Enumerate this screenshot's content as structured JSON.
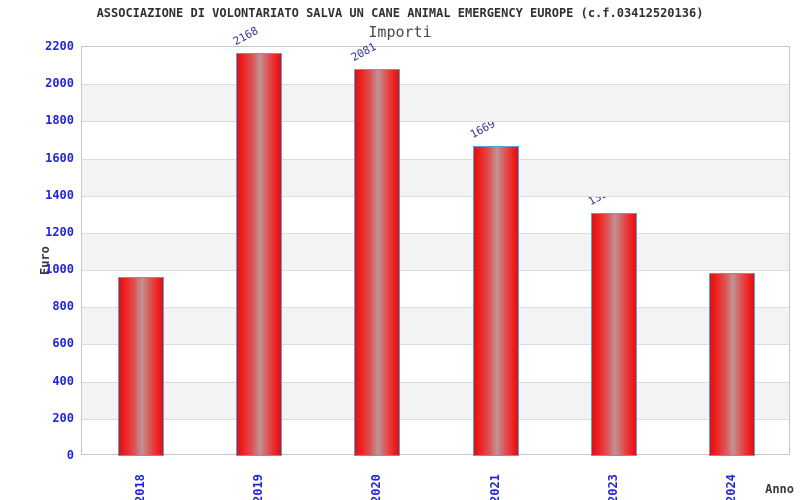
{
  "chart": {
    "title": "ASSOCIAZIONE DI VOLONTARIATO SALVA UN CANE ANIMAL EMERGENCY EUROPE (c.f.03412520136)",
    "subtitle": "Importi",
    "ylabel": "Euro",
    "xlabel": "Anno"
  },
  "chart_data": {
    "type": "bar",
    "title": "ASSOCIAZIONE DI VOLONTARIATO SALVA UN CANE ANIMAL EMERGENCY EUROPE (c.f.03412520136)",
    "subtitle": "Importi",
    "xlabel": "Anno",
    "ylabel": "Euro",
    "categories": [
      "2018",
      "2019",
      "2020",
      "2021",
      "2023",
      "2024"
    ],
    "values": [
      962,
      2168,
      2081,
      1669,
      1307,
      985
    ],
    "ylim": [
      0,
      2200
    ],
    "ytick_step": 200,
    "yticks": [
      0,
      200,
      400,
      600,
      800,
      1000,
      1200,
      1400,
      1600,
      1800,
      2000,
      2200
    ],
    "grid": "horizontal gridlines with alternating gray bands",
    "legend_position": "none",
    "colors": {
      "bar_fill": "#f01d1d",
      "bar_highlight": "#bf9494",
      "bar_border": "#5f9dd8",
      "tick_label": "#2424da",
      "value_label": "#333399",
      "band_gray": "#f3f3f3",
      "gridline": "#dcdcdc",
      "plot_border": "#c6c6c6",
      "title_color": "#303030",
      "subtitle_color": "#4a4a4a"
    }
  }
}
